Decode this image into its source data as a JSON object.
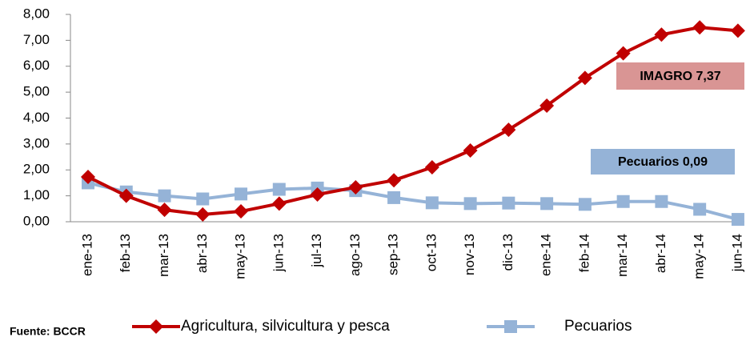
{
  "chart_data": {
    "type": "line",
    "categories": [
      "ene-13",
      "feb-13",
      "mar-13",
      "abr-13",
      "may-13",
      "jun-13",
      "jul-13",
      "ago-13",
      "sep-13",
      "oct-13",
      "nov-13",
      "dic-13",
      "ene-14",
      "feb-14",
      "mar-14",
      "abr-14",
      "may-14",
      "jun-14"
    ],
    "series": [
      {
        "name": "Agricultura, silvicultura y pesca",
        "color": "#c00000",
        "marker": "diamond",
        "values": [
          1.73,
          1.0,
          0.46,
          0.28,
          0.4,
          0.7,
          1.05,
          1.33,
          1.6,
          2.1,
          2.75,
          3.55,
          4.48,
          5.55,
          6.5,
          7.22,
          7.5,
          7.37
        ]
      },
      {
        "name": "Pecuarios",
        "color": "#95b3d7",
        "marker": "square",
        "values": [
          1.5,
          1.15,
          1.0,
          0.88,
          1.07,
          1.25,
          1.3,
          1.2,
          0.93,
          0.73,
          0.7,
          0.72,
          0.7,
          0.67,
          0.78,
          0.78,
          0.48,
          0.09
        ]
      }
    ],
    "ylim": [
      0,
      8
    ],
    "yticks": [
      {
        "value": 0,
        "label": "0,00"
      },
      {
        "value": 1,
        "label": "1,00"
      },
      {
        "value": 2,
        "label": "2,00"
      },
      {
        "value": 3,
        "label": "3,00"
      },
      {
        "value": 4,
        "label": "4,00"
      },
      {
        "value": 5,
        "label": "5,00"
      },
      {
        "value": 6,
        "label": "6,00"
      },
      {
        "value": 7,
        "label": "7,00"
      },
      {
        "value": 8,
        "label": "8,00"
      }
    ],
    "annotations": [
      {
        "text": "IMAGRO 7,37",
        "color": "#d99594"
      },
      {
        "text": "Pecuarios 0,09",
        "color": "#95b3d7"
      }
    ],
    "source": "Fuente: BCCR"
  }
}
